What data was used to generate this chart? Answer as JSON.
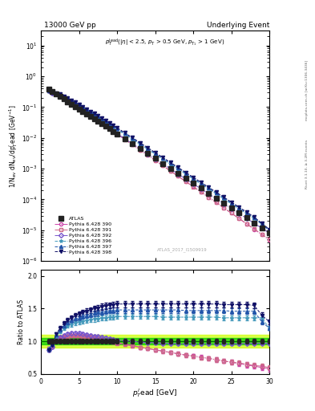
{
  "title_left": "13000 GeV pp",
  "title_right": "Underlying Event",
  "annotation": "ATLAS_2017_I1509919",
  "inner_label": "$p_T^{\\rm lead}$(|\\eta| < 2.5, $p_T$ > 0.5 GeV, $p_{T_1}$ > 1 GeV)",
  "ylabel_main": "1/N$_{\\rm ev}$ dN$_{\\rm ev}$/dp$_T^l$ead [GeV$^{-1}$]",
  "ylabel_ratio": "Ratio to ATLAS",
  "xlabel": "$p_T^l$ead [GeV]",
  "right_label1": "Rivet 3.1.10, ≥ 3.2M events",
  "right_label2": "mcplots.cern.ch [arXiv:1306.3436]",
  "xlim": [
    0,
    30
  ],
  "ylim_main": [
    1e-06,
    30
  ],
  "ylim_ratio": [
    0.5,
    2.1
  ],
  "atlas_x": [
    1.0,
    1.5,
    2.0,
    2.5,
    3.0,
    3.5,
    4.0,
    4.5,
    5.0,
    5.5,
    6.0,
    6.5,
    7.0,
    7.5,
    8.0,
    8.5,
    9.0,
    9.5,
    10.0,
    11.0,
    12.0,
    13.0,
    14.0,
    15.0,
    16.0,
    17.0,
    18.0,
    19.0,
    20.0,
    21.0,
    22.0,
    23.0,
    24.0,
    25.0,
    26.0,
    27.0,
    28.0,
    29.0,
    30.0
  ],
  "atlas_y_base": 0.55,
  "atlas_y_slope": -0.37,
  "atlas_color": "#222222",
  "band_color_inner": "#00cc00",
  "band_color_outer": "#ccff00",
  "band_inner": [
    0.95,
    1.05
  ],
  "band_outer": [
    0.9,
    1.1
  ],
  "lines": [
    {
      "label": "Pythia 6.428 390",
      "color": "#cc44aa",
      "marker": "o",
      "fillstyle": "none",
      "linestyle": "-.",
      "ratio_values": [
        0.88,
        0.92,
        1.0,
        1.04,
        1.07,
        1.08,
        1.09,
        1.09,
        1.09,
        1.08,
        1.07,
        1.06,
        1.05,
        1.04,
        1.03,
        1.02,
        1.0,
        0.99,
        0.98,
        0.96,
        0.94,
        0.91,
        0.89,
        0.87,
        0.85,
        0.83,
        0.81,
        0.79,
        0.78,
        0.76,
        0.74,
        0.72,
        0.7,
        0.68,
        0.66,
        0.64,
        0.62,
        0.6,
        0.58
      ]
    },
    {
      "label": "Pythia 6.428 391",
      "color": "#cc6688",
      "marker": "s",
      "fillstyle": "none",
      "linestyle": "-.",
      "ratio_values": [
        0.89,
        0.93,
        1.01,
        1.05,
        1.07,
        1.08,
        1.09,
        1.09,
        1.09,
        1.08,
        1.07,
        1.06,
        1.05,
        1.04,
        1.02,
        1.01,
        1.0,
        0.99,
        0.97,
        0.95,
        0.93,
        0.91,
        0.89,
        0.87,
        0.85,
        0.83,
        0.81,
        0.79,
        0.77,
        0.75,
        0.74,
        0.72,
        0.7,
        0.68,
        0.67,
        0.65,
        0.63,
        0.62,
        0.6
      ]
    },
    {
      "label": "Pythia 6.428 392",
      "color": "#7755cc",
      "marker": "D",
      "fillstyle": "none",
      "linestyle": "-.",
      "ratio_values": [
        0.87,
        0.92,
        1.01,
        1.06,
        1.09,
        1.11,
        1.12,
        1.12,
        1.12,
        1.11,
        1.1,
        1.09,
        1.08,
        1.07,
        1.06,
        1.05,
        1.04,
        1.03,
        1.02,
        1.01,
        1.0,
        0.99,
        0.98,
        0.98,
        0.97,
        0.97,
        0.96,
        0.96,
        0.96,
        0.96,
        0.96,
        0.96,
        0.96,
        0.96,
        0.96,
        0.97,
        0.97,
        0.97,
        0.97
      ]
    },
    {
      "label": "Pythia 6.428 396",
      "color": "#4499bb",
      "marker": "*",
      "fillstyle": "full",
      "linestyle": "--",
      "ratio_values": [
        0.89,
        0.95,
        1.08,
        1.15,
        1.2,
        1.24,
        1.26,
        1.28,
        1.3,
        1.31,
        1.32,
        1.33,
        1.34,
        1.35,
        1.36,
        1.36,
        1.37,
        1.37,
        1.38,
        1.38,
        1.38,
        1.38,
        1.38,
        1.38,
        1.37,
        1.37,
        1.37,
        1.37,
        1.37,
        1.37,
        1.37,
        1.37,
        1.36,
        1.36,
        1.36,
        1.36,
        1.36,
        1.36,
        1.2
      ]
    },
    {
      "label": "Pythia 6.428 397",
      "color": "#2255aa",
      "marker": "^",
      "fillstyle": "full",
      "linestyle": "--",
      "ratio_values": [
        0.88,
        0.95,
        1.1,
        1.18,
        1.24,
        1.28,
        1.32,
        1.34,
        1.36,
        1.38,
        1.4,
        1.41,
        1.43,
        1.44,
        1.45,
        1.46,
        1.47,
        1.47,
        1.48,
        1.48,
        1.48,
        1.48,
        1.48,
        1.48,
        1.48,
        1.48,
        1.48,
        1.47,
        1.47,
        1.47,
        1.47,
        1.47,
        1.47,
        1.46,
        1.46,
        1.46,
        1.46,
        1.3,
        1.2
      ]
    },
    {
      "label": "Pythia 6.428 398",
      "color": "#111166",
      "marker": "v",
      "fillstyle": "full",
      "linestyle": "--",
      "ratio_values": [
        0.87,
        0.94,
        1.11,
        1.2,
        1.27,
        1.32,
        1.36,
        1.39,
        1.42,
        1.44,
        1.46,
        1.48,
        1.5,
        1.51,
        1.53,
        1.54,
        1.55,
        1.56,
        1.57,
        1.57,
        1.57,
        1.57,
        1.57,
        1.57,
        1.57,
        1.57,
        1.57,
        1.57,
        1.57,
        1.57,
        1.57,
        1.57,
        1.56,
        1.56,
        1.56,
        1.56,
        1.55,
        1.4,
        1.3
      ]
    }
  ]
}
